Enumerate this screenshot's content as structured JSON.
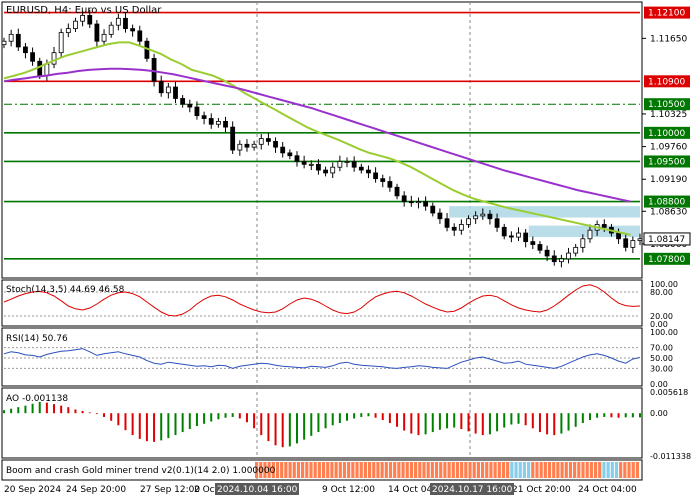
{
  "window": {
    "title": "EURUSD, H4: Euro vs US Dollar"
  },
  "colors": {
    "bull": "#000000",
    "bear": "#000000",
    "ema_fast": "#9acd32",
    "ema_slow": "#9932cc",
    "level_red": "#dd0000",
    "level_green": "#007700",
    "zone": "#add8e6",
    "stoch": "#dd0000",
    "rsi": "#2b4fbf",
    "ao_up": "#008000",
    "ao_down": "#dd0000",
    "trend_up": "#ff7f50",
    "trend_blue": "#87ceeb"
  },
  "chart_data": [
    {
      "type": "candlestick",
      "title": "EURUSD, H4: Euro vs US Dollar",
      "ylim": [
        1.075,
        1.1225
      ],
      "price_axis_labels": [
        "1.12100",
        "1.11650",
        "1.10900",
        "1.10325",
        "1.10050",
        "1.09760",
        "1.10000",
        "1.09500",
        "1.09190",
        "1.08800",
        "1.08630",
        "1.08147",
        "1.07800",
        "1.08060"
      ],
      "levels": [
        {
          "value": 1.121,
          "label": "1.12100",
          "color": "red",
          "style": "solid"
        },
        {
          "value": 1.109,
          "label": "1.10900",
          "color": "red",
          "style": "solid"
        },
        {
          "value": 1.105,
          "label": "1.10500",
          "color": "green",
          "style": "dashdot"
        },
        {
          "value": 1.1,
          "label": "1.10000",
          "color": "green",
          "style": "solid"
        },
        {
          "value": 1.095,
          "label": "1.09500",
          "color": "green",
          "style": "solid"
        },
        {
          "value": 1.088,
          "label": "1.08800",
          "color": "green",
          "style": "solid"
        },
        {
          "value": 1.078,
          "label": "1.07800",
          "color": "green",
          "style": "solid"
        }
      ],
      "current_price": "1.08147",
      "tick_labels": {
        "1.1165": "1.11650",
        "1.1033": "1.10325",
        "1.0976": "1.09760",
        "1.0919": "1.09190",
        "1.0863": "1.08630",
        "1.0806": "1.08060"
      },
      "demand_zones": [
        {
          "start": 0.7,
          "end": 1.0,
          "low": 1.0852,
          "high": 1.0872
        },
        {
          "start": 0.825,
          "end": 1.0,
          "low": 1.0818,
          "high": 1.0838
        }
      ],
      "close_path": [
        1.116,
        1.1172,
        1.115,
        1.114,
        1.1125,
        1.11,
        1.112,
        1.114,
        1.1175,
        1.1182,
        1.1195,
        1.1205,
        1.119,
        1.116,
        1.1172,
        1.1188,
        1.12,
        1.1182,
        1.1178,
        1.116,
        1.113,
        1.109,
        1.107,
        1.108,
        1.106,
        1.105,
        1.1045,
        1.103,
        1.1025,
        1.1015,
        1.102,
        1.101,
        1.097,
        1.098,
        1.0975,
        1.098,
        1.099,
        1.0985,
        1.0975,
        1.0965,
        1.096,
        1.095,
        1.0945,
        1.0945,
        1.0935,
        1.093,
        1.094,
        1.095,
        1.095,
        1.094,
        1.0935,
        1.093,
        1.092,
        1.0915,
        1.0905,
        1.089,
        1.088,
        1.0878,
        1.088,
        1.0872,
        1.086,
        1.085,
        1.0835,
        1.083,
        1.084,
        1.085,
        1.0855,
        1.0858,
        1.085,
        1.0835,
        1.082,
        1.0818,
        1.0825,
        1.081,
        1.0805,
        1.0795,
        1.0785,
        1.0775,
        1.078,
        1.079,
        1.08,
        1.0815,
        1.083,
        1.084,
        1.0835,
        1.0825,
        1.0815,
        1.08,
        1.0812,
        1.0815
      ],
      "ema_fast": [
        1.1095,
        1.11,
        1.1105,
        1.1112,
        1.112,
        1.1128,
        1.1135,
        1.114,
        1.1145,
        1.115,
        1.1155,
        1.1158,
        1.1158,
        1.1152,
        1.1145,
        1.1138,
        1.1128,
        1.112,
        1.111,
        1.1105,
        1.11,
        1.1092,
        1.1082,
        1.107,
        1.106,
        1.105,
        1.104,
        1.103,
        1.102,
        1.101,
        1.1002,
        1.0995,
        1.0988,
        1.098,
        1.0972,
        1.0965,
        1.096,
        1.0955,
        1.0948,
        1.094,
        1.093,
        1.092,
        1.091,
        1.09,
        1.0892,
        1.0885,
        1.088,
        1.0875,
        1.087,
        1.0866,
        1.0862,
        1.0858,
        1.0854,
        1.085,
        1.0846,
        1.0842,
        1.0838,
        1.0834,
        1.083,
        1.0826,
        1.0822
      ],
      "ema_slow": [
        1.109,
        1.1093,
        1.1095,
        1.1098,
        1.11,
        1.1103,
        1.1105,
        1.1108,
        1.111,
        1.1111,
        1.1112,
        1.1112,
        1.1111,
        1.111,
        1.1108,
        1.1105,
        1.1102,
        1.1098,
        1.1094,
        1.109,
        1.1086,
        1.1082,
        1.1078,
        1.1073,
        1.1068,
        1.1063,
        1.1058,
        1.1053,
        1.1048,
        1.1043,
        1.1037,
        1.1031,
        1.1025,
        1.1019,
        1.1013,
        1.1007,
        1.1001,
        1.0995,
        1.0989,
        1.0983,
        1.0977,
        1.0971,
        1.0965,
        1.0959,
        1.0953,
        1.0947,
        1.0941,
        1.0935,
        1.093,
        1.0925,
        1.092,
        1.0915,
        1.091,
        1.0905,
        1.09,
        1.0896,
        1.0892,
        1.0888,
        1.0884,
        1.088
      ]
    },
    {
      "type": "line",
      "title": "Stoch(14,3,5) 44.69 46.58",
      "ylim": [
        0,
        100
      ],
      "axis_labels": [
        "100.00",
        "80.00",
        "20.00",
        "0.00"
      ],
      "levels": [
        80,
        20
      ],
      "values": [
        55,
        62,
        70,
        76,
        80,
        82,
        78,
        70,
        58,
        45,
        38,
        35,
        40,
        50,
        62,
        72,
        78,
        80,
        76,
        68,
        55,
        42,
        30,
        22,
        20,
        25,
        35,
        50,
        62,
        70,
        72,
        68,
        60,
        50,
        42,
        35,
        30,
        28,
        30,
        38,
        50,
        60,
        65,
        62,
        55,
        45,
        35,
        28,
        26,
        30,
        40,
        55,
        68,
        75,
        80,
        82,
        78,
        70,
        60,
        50,
        42,
        35,
        30,
        32,
        40,
        52,
        62,
        70,
        72,
        68,
        58,
        48,
        40,
        35,
        32,
        30,
        35,
        45,
        58,
        72,
        85,
        95,
        98,
        92,
        80,
        65,
        52,
        46,
        44,
        45
      ]
    },
    {
      "type": "line",
      "title": "RSI(14) 50.76",
      "ylim": [
        0,
        100
      ],
      "axis_labels": [
        "100.00",
        "70.00",
        "50.00",
        "30.00",
        "0.00"
      ],
      "levels": [
        70,
        50,
        30
      ],
      "values": [
        58,
        62,
        60,
        56,
        55,
        52,
        57,
        60,
        63,
        64,
        66,
        68,
        62,
        55,
        58,
        60,
        62,
        58,
        55,
        52,
        45,
        40,
        38,
        42,
        40,
        38,
        36,
        34,
        35,
        33,
        36,
        35,
        30,
        34,
        36,
        38,
        40,
        39,
        36,
        34,
        33,
        32,
        31,
        34,
        33,
        32,
        35,
        40,
        42,
        38,
        36,
        35,
        34,
        33,
        31,
        30,
        32,
        33,
        35,
        34,
        32,
        31,
        30,
        36,
        42,
        46,
        50,
        52,
        48,
        44,
        40,
        41,
        44,
        38,
        36,
        34,
        32,
        30,
        34,
        40,
        46,
        52,
        56,
        58,
        55,
        50,
        44,
        40,
        48,
        51
      ]
    },
    {
      "type": "bar",
      "title": "AO -0.001138",
      "ylim": [
        -0.011338,
        0.005618
      ],
      "axis_labels": [
        "0.005618",
        "0.00",
        "-0.011338"
      ],
      "values": [
        0.0008,
        0.0012,
        0.0016,
        0.002,
        0.0025,
        0.003,
        0.0028,
        0.0024,
        0.002,
        0.0016,
        0.001,
        0.0006,
        0.0002,
        -0.0002,
        -0.001,
        -0.002,
        -0.0032,
        -0.0045,
        -0.0058,
        -0.0068,
        -0.0074,
        -0.0076,
        -0.0072,
        -0.0066,
        -0.0058,
        -0.005,
        -0.0042,
        -0.0034,
        -0.0028,
        -0.0022,
        -0.0016,
        -0.0012,
        -0.001,
        -0.0014,
        -0.0024,
        -0.004,
        -0.0058,
        -0.0074,
        -0.0085,
        -0.009,
        -0.0088,
        -0.008,
        -0.007,
        -0.006,
        -0.005,
        -0.004,
        -0.0032,
        -0.0026,
        -0.002,
        -0.0014,
        -0.001,
        -0.0008,
        -0.0012,
        -0.0018,
        -0.0026,
        -0.0036,
        -0.0046,
        -0.0054,
        -0.0058,
        -0.0056,
        -0.005,
        -0.0044,
        -0.004,
        -0.0038,
        -0.0042,
        -0.0048,
        -0.0054,
        -0.0058,
        -0.0056,
        -0.0048,
        -0.0038,
        -0.003,
        -0.0028,
        -0.0032,
        -0.004,
        -0.005,
        -0.0056,
        -0.0058,
        -0.0054,
        -0.0046,
        -0.0036,
        -0.0026,
        -0.0018,
        -0.0012,
        -0.001,
        -0.0011,
        -0.0012,
        -0.0011,
        -0.0011,
        -0.0011
      ]
    },
    {
      "type": "bar",
      "title": "Boom and crash Gold miner trend v2(0.1)(14 2.0) 1.000000",
      "values_description_colors": "mostly orange bars with small blue segments",
      "values": [
        "o",
        "o",
        "o",
        "o",
        "o",
        "o",
        "o",
        "o",
        "o",
        "o",
        "o",
        "o",
        "o",
        "o",
        "o",
        "o",
        "o",
        "o",
        "o",
        "o",
        "o",
        "o",
        "o",
        "o",
        "o",
        "o",
        "o",
        "o",
        "o",
        "o",
        "o",
        "o",
        "o",
        "o",
        "o",
        "o",
        "o",
        "o",
        "o",
        "o",
        "o",
        "o",
        "o",
        "o",
        "o",
        "o",
        "o",
        "o",
        "o",
        "o",
        "o",
        "o",
        "o",
        "o",
        "o",
        "o",
        "o",
        "o",
        "o",
        "o",
        "o",
        "b",
        "b",
        "b",
        "b",
        "b",
        "o",
        "o",
        "o",
        "o",
        "o",
        "o",
        "o",
        "o",
        "o",
        "o",
        "o",
        "o",
        "o",
        "o",
        "o",
        "o",
        "o",
        "b",
        "b",
        "b",
        "b",
        "o",
        "o",
        "o",
        "o",
        "o"
      ]
    }
  ],
  "time_axis": {
    "labels": [
      "20 Sep 2024",
      "24 Sep 20:00",
      "27 Sep 12:00",
      "2 Oct",
      "9 Oct 12:00",
      "14 Oct 04:00",
      "21 Oct 20:00",
      "24 Oct 04:00"
    ],
    "highlight_labels": [
      "2024.10.04 16:00",
      "2024.10.17 16:00"
    ]
  }
}
